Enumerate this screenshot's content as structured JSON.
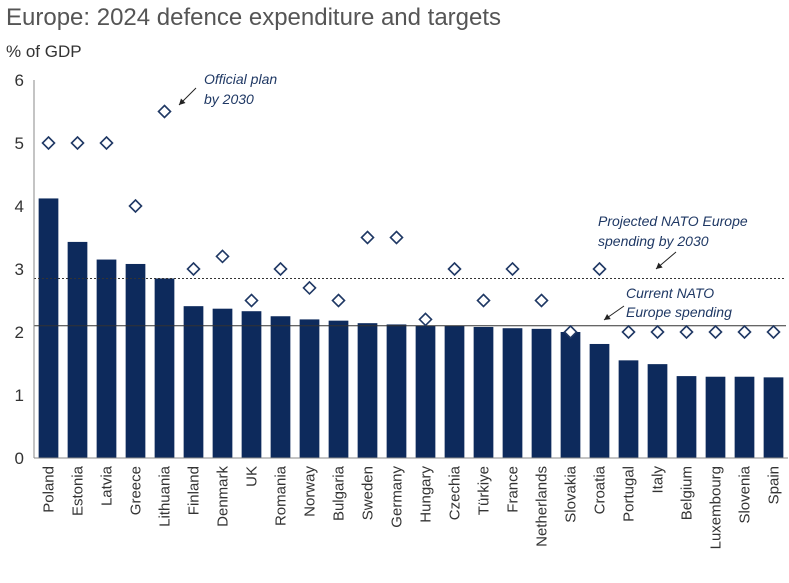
{
  "chart_data": {
    "type": "bar",
    "title": "Europe: 2024 defence expenditure and targets",
    "ylabel": "% of GDP",
    "xlabel": "",
    "ylim": [
      0,
      6
    ],
    "yticks": [
      0,
      1,
      2,
      3,
      4,
      5,
      6
    ],
    "grid": false,
    "categories": [
      "Poland",
      "Estonia",
      "Latvia",
      "Greece",
      "Lithuania",
      "Finland",
      "Denmark",
      "UK",
      "Romania",
      "Norway",
      "Bulgaria",
      "Sweden",
      "Germany",
      "Hungary",
      "Czechia",
      "Türkiye",
      "France",
      "Netherlands",
      "Slovakia",
      "Croatia",
      "Portugal",
      "Italy",
      "Belgium",
      "Luxembourg",
      "Slovenia",
      "Spain"
    ],
    "series": [
      {
        "type": "bar",
        "color": "#0d2a5c",
        "values": [
          4.12,
          3.43,
          3.15,
          3.08,
          2.85,
          2.41,
          2.37,
          2.33,
          2.25,
          2.2,
          2.18,
          2.14,
          2.12,
          2.1,
          2.1,
          2.08,
          2.06,
          2.05,
          2.0,
          1.81,
          1.55,
          1.49,
          1.3,
          1.29,
          1.29,
          1.28
        ]
      },
      {
        "type": "scatter",
        "marker": "diamond",
        "color": "#1f3864",
        "values": [
          5.0,
          5.0,
          5.0,
          4.0,
          5.5,
          3.0,
          3.2,
          2.5,
          3.0,
          2.7,
          2.5,
          3.5,
          3.5,
          2.2,
          3.0,
          2.5,
          3.0,
          2.5,
          2.0,
          3.0,
          2.0,
          2.0,
          2.0,
          2.0,
          2.0,
          2.0
        ]
      }
    ],
    "reference_lines": [
      {
        "value": 2.85,
        "style": "dotted"
      },
      {
        "value": 2.1,
        "style": "solid"
      }
    ],
    "annotations": [
      {
        "text": [
          "Official plan",
          "by 2030"
        ]
      },
      {
        "text": [
          "Projected NATO Europe",
          "spending by 2030"
        ]
      },
      {
        "text": [
          "Current NATO",
          "Europe spending"
        ]
      }
    ]
  }
}
